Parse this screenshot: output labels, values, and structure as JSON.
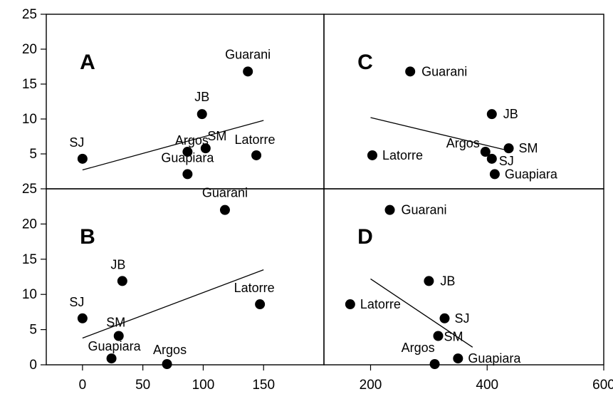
{
  "chart_data": [
    {
      "type": "scatter",
      "panel_label": "A",
      "xlim": [
        -30,
        200
      ],
      "ylim": [
        0,
        25
      ],
      "y_ticks": [
        5,
        10,
        15,
        20,
        25
      ],
      "grid": false,
      "points": [
        {
          "label": "SJ",
          "x": 0,
          "y": 4.3
        },
        {
          "label": "Guarani",
          "x": 137,
          "y": 16.8
        },
        {
          "label": "JB",
          "x": 99,
          "y": 10.7
        },
        {
          "label": "Argos",
          "x": 87,
          "y": 5.3
        },
        {
          "label": "SM",
          "x": 102,
          "y": 5.8
        },
        {
          "label": "Latorre",
          "x": 144,
          "y": 4.8
        },
        {
          "label": "Guapiara",
          "x": 87,
          "y": 2.1
        }
      ],
      "trendline": {
        "x": [
          0,
          150
        ],
        "y": [
          2.7,
          9.8
        ]
      }
    },
    {
      "type": "scatter",
      "panel_label": "B",
      "xlim": [
        -30,
        200
      ],
      "ylim": [
        0,
        25
      ],
      "x_ticks": [
        0,
        50,
        100,
        150
      ],
      "y_ticks": [
        0,
        5,
        10,
        15,
        20,
        25
      ],
      "grid": false,
      "points": [
        {
          "label": "Guarani",
          "x": 118,
          "y": 22
        },
        {
          "label": "JB",
          "x": 33,
          "y": 11.9
        },
        {
          "label": "SJ",
          "x": 0,
          "y": 6.6
        },
        {
          "label": "SM",
          "x": 30,
          "y": 4.1
        },
        {
          "label": "Latorre",
          "x": 147,
          "y": 8.6
        },
        {
          "label": "Guapiara",
          "x": 24,
          "y": 0.9
        },
        {
          "label": "Argos",
          "x": 70,
          "y": 0.1
        }
      ],
      "trendline": {
        "x": [
          0,
          150
        ],
        "y": [
          3.8,
          13.5
        ]
      }
    },
    {
      "type": "scatter",
      "panel_label": "C",
      "xlim": [
        120,
        600
      ],
      "ylim": [
        0,
        25
      ],
      "grid": false,
      "points": [
        {
          "label": "Guarani",
          "x": 268,
          "y": 16.8
        },
        {
          "label": "JB",
          "x": 408,
          "y": 10.7
        },
        {
          "label": "Latorre",
          "x": 203,
          "y": 4.8
        },
        {
          "label": "Argos",
          "x": 397,
          "y": 5.3
        },
        {
          "label": "SM",
          "x": 437,
          "y": 5.8
        },
        {
          "label": "SJ",
          "x": 408,
          "y": 4.3
        },
        {
          "label": "Guapiara",
          "x": 413,
          "y": 2.1
        }
      ],
      "trendline": {
        "x": [
          200,
          430
        ],
        "y": [
          10.2,
          5.6
        ]
      }
    },
    {
      "type": "scatter",
      "panel_label": "D",
      "xlim": [
        120,
        600
      ],
      "ylim": [
        0,
        25
      ],
      "x_ticks": [
        200,
        400,
        600
      ],
      "grid": false,
      "points": [
        {
          "label": "Guarani",
          "x": 233,
          "y": 22
        },
        {
          "label": "JB",
          "x": 300,
          "y": 11.9
        },
        {
          "label": "Latorre",
          "x": 165,
          "y": 8.6
        },
        {
          "label": "SJ",
          "x": 327,
          "y": 6.6
        },
        {
          "label": "SM",
          "x": 316,
          "y": 4.1
        },
        {
          "label": "Argos",
          "x": 310,
          "y": 0.1
        },
        {
          "label": "Guapiara",
          "x": 350,
          "y": 0.9
        }
      ],
      "trendline": {
        "x": [
          200,
          375
        ],
        "y": [
          12.2,
          2.5
        ]
      }
    }
  ]
}
